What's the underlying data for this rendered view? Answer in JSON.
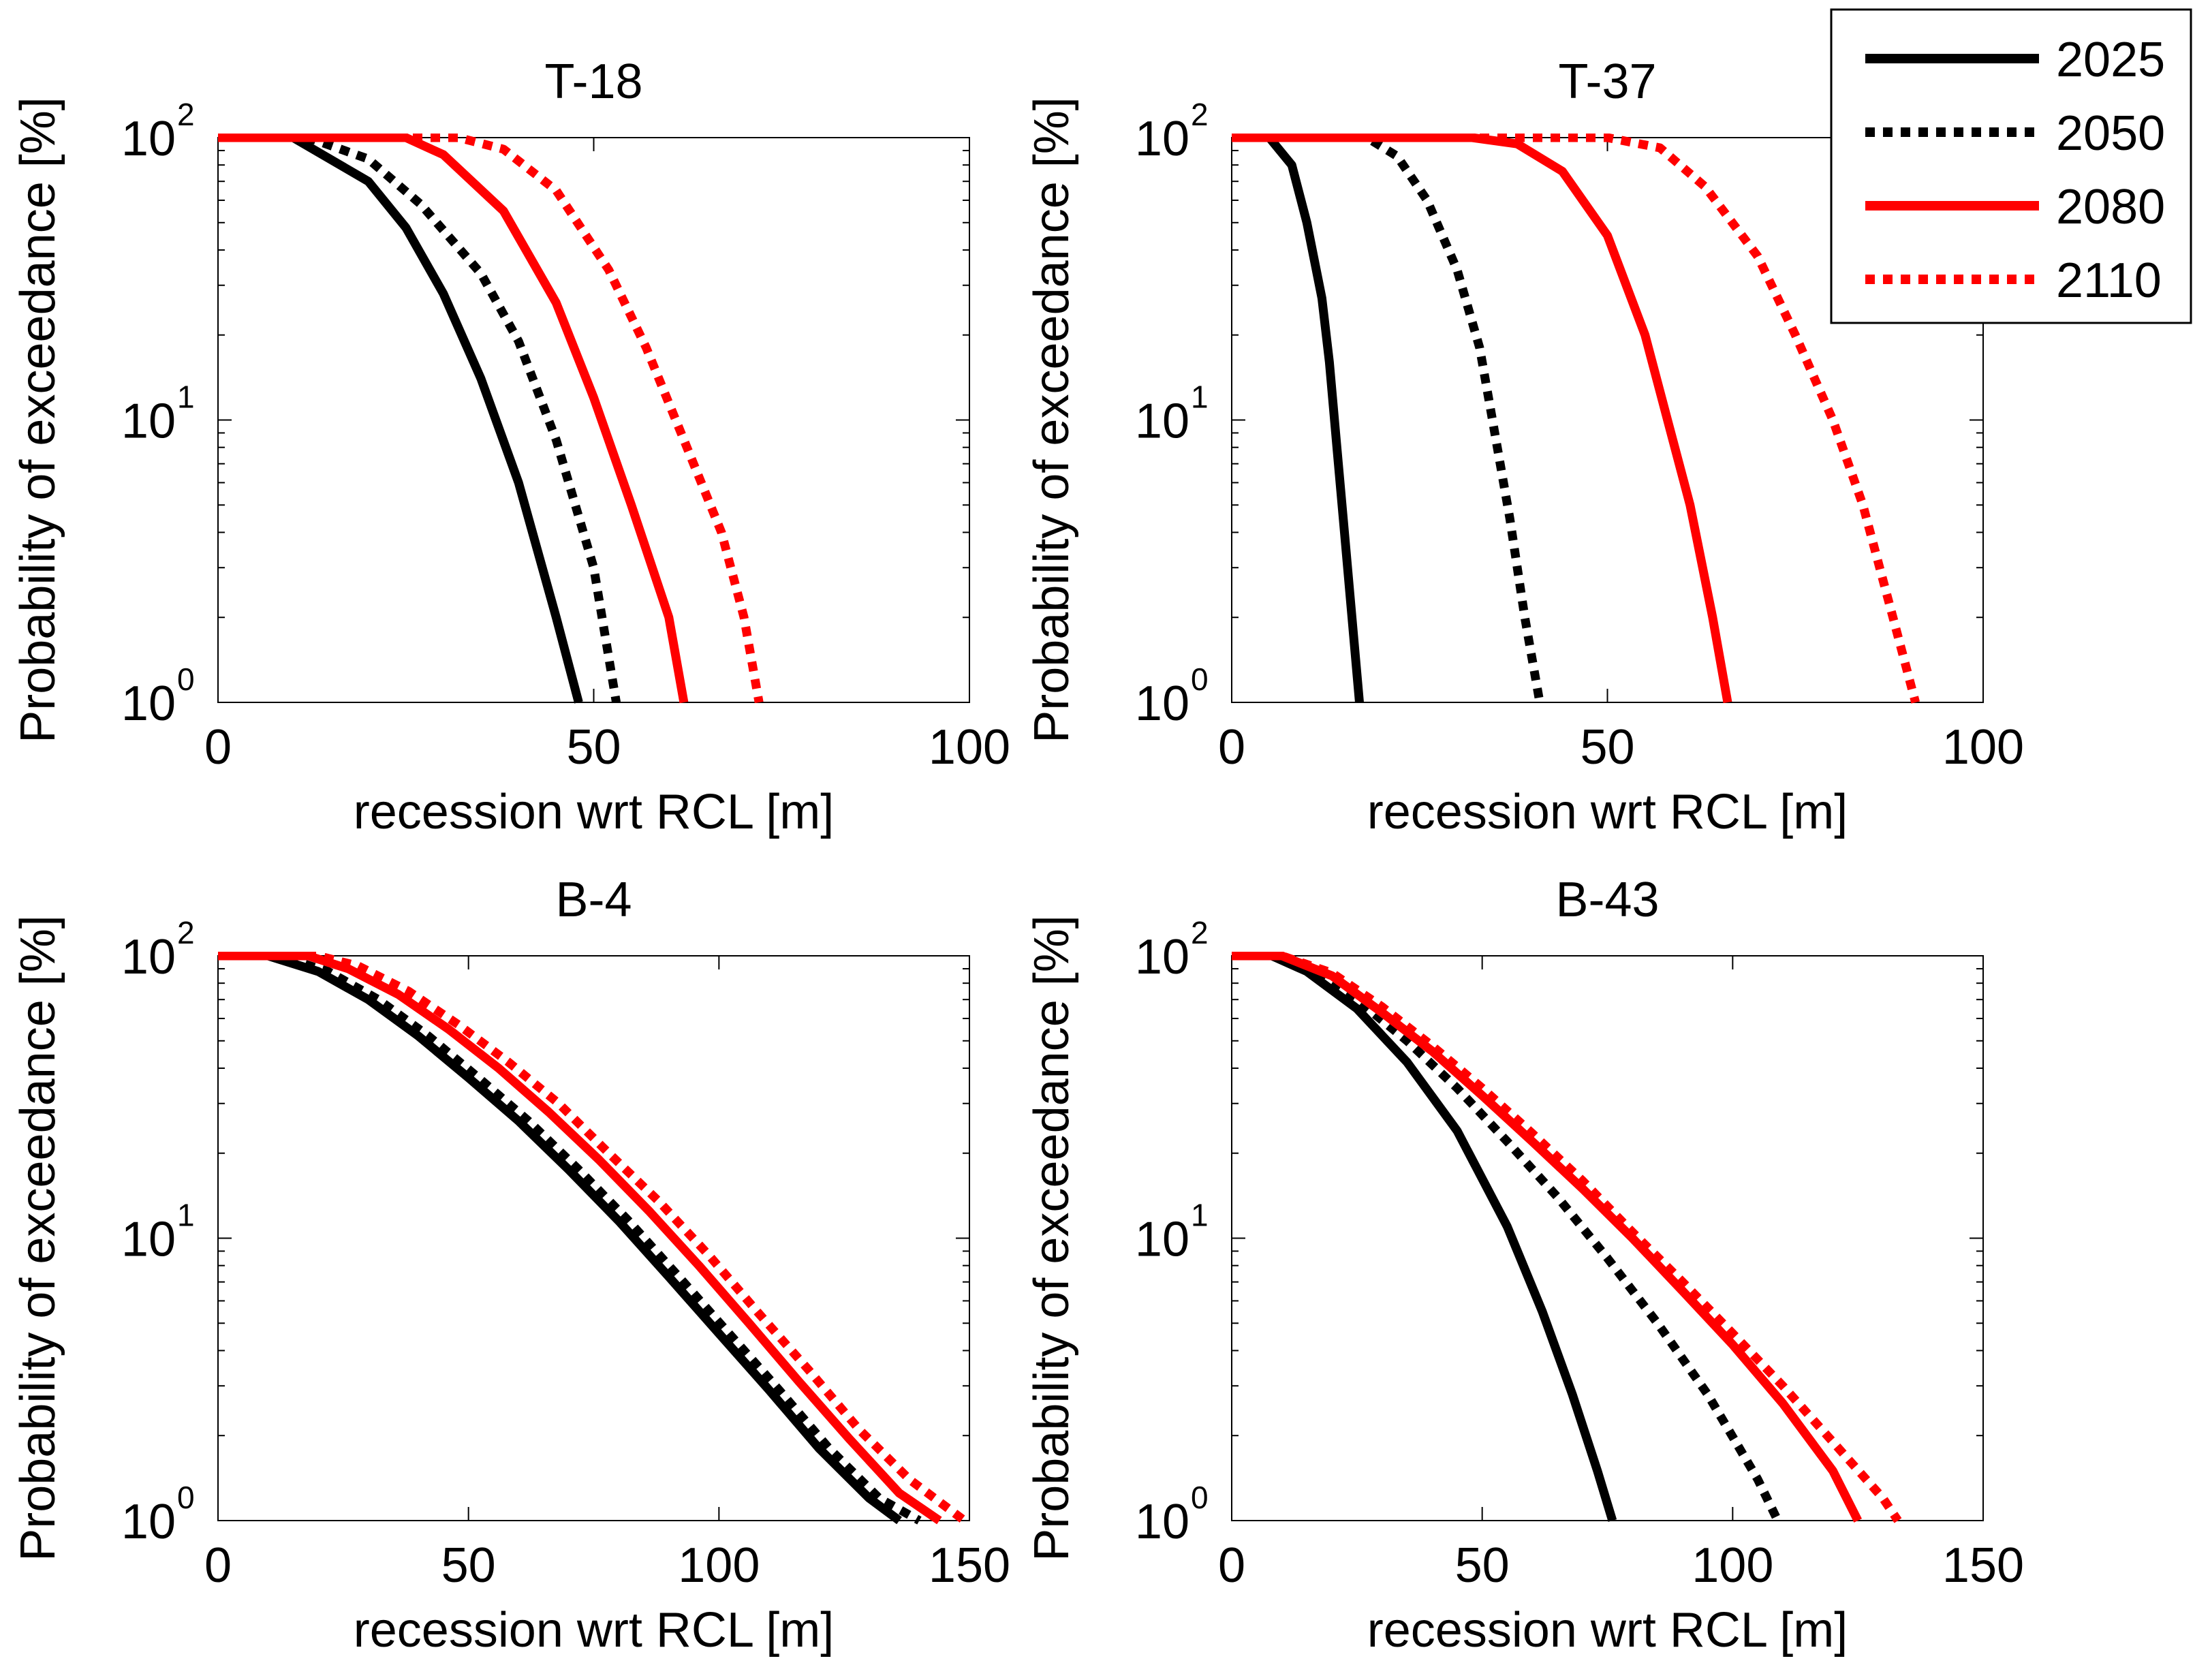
{
  "chart_data": [
    {
      "type": "line",
      "title": "T-18",
      "xlabel": "recession wrt RCL [m]",
      "ylabel": "Probability of exceedance [%]",
      "xlim": [
        0,
        100
      ],
      "ylim": [
        1,
        100
      ],
      "yscale": "log",
      "xticks": [
        "0",
        "50",
        "100"
      ],
      "yticks": [
        {
          "base": "10",
          "exp": "0"
        },
        {
          "base": "10",
          "exp": "1"
        },
        {
          "base": "10",
          "exp": "2"
        }
      ],
      "series": [
        {
          "name": "2025",
          "x": [
            0,
            10,
            20,
            25,
            30,
            35,
            40,
            45,
            48
          ],
          "y": [
            100,
            100,
            70,
            48,
            28,
            14,
            6,
            2,
            1
          ]
        },
        {
          "name": "2050",
          "x": [
            0,
            12,
            20,
            27,
            35,
            40,
            45,
            50,
            53
          ],
          "y": [
            100,
            100,
            84,
            58,
            33,
            19,
            8.5,
            3,
            1
          ]
        },
        {
          "name": "2080",
          "x": [
            0,
            25,
            30,
            38,
            45,
            50,
            55,
            60,
            62
          ],
          "y": [
            100,
            100,
            87,
            55,
            26,
            12,
            5,
            2,
            1
          ]
        },
        {
          "name": "2110",
          "x": [
            0,
            32,
            38,
            45,
            52,
            57,
            62,
            67,
            70,
            72
          ],
          "y": [
            100,
            100,
            91,
            65,
            34,
            18,
            8.5,
            4,
            2,
            1
          ]
        }
      ]
    },
    {
      "type": "line",
      "title": "T-37",
      "xlabel": "recession wrt RCL [m]",
      "ylabel": "Probability of exceedance [%]",
      "xlim": [
        0,
        100
      ],
      "ylim": [
        1,
        100
      ],
      "yscale": "log",
      "xticks": [
        "0",
        "50",
        "100"
      ],
      "yticks": [
        {
          "base": "10",
          "exp": "0"
        },
        {
          "base": "10",
          "exp": "1"
        },
        {
          "base": "10",
          "exp": "2"
        }
      ],
      "series": [
        {
          "name": "2025",
          "x": [
            0,
            5,
            8,
            10,
            12,
            13,
            14,
            15,
            16,
            17
          ],
          "y": [
            100,
            100,
            80,
            50,
            27,
            16,
            8,
            4,
            2,
            1
          ]
        },
        {
          "name": "2050",
          "x": [
            0,
            18,
            22,
            26,
            30,
            33,
            35,
            37,
            39,
            41
          ],
          "y": [
            100,
            100,
            86,
            60,
            34,
            18,
            9,
            4.5,
            2,
            1
          ]
        },
        {
          "name": "2080",
          "x": [
            0,
            32,
            38,
            44,
            50,
            55,
            58,
            61,
            64,
            66
          ],
          "y": [
            100,
            100,
            95,
            76,
            45,
            20,
            10,
            5,
            2,
            1
          ]
        },
        {
          "name": "2110",
          "x": [
            0,
            50,
            57,
            63,
            70,
            75,
            80,
            84,
            88,
            91
          ],
          "y": [
            100,
            100,
            92,
            67,
            38,
            20,
            10,
            5,
            2,
            1
          ]
        }
      ]
    },
    {
      "type": "line",
      "title": "B-4",
      "xlabel": "recession wrt RCL [m]",
      "ylabel": "Probability of exceedance [%]",
      "xlim": [
        0,
        150
      ],
      "ylim": [
        1,
        100
      ],
      "yscale": "log",
      "xticks": [
        "0",
        "50",
        "100",
        "150"
      ],
      "yticks": [
        {
          "base": "10",
          "exp": "0"
        },
        {
          "base": "10",
          "exp": "1"
        },
        {
          "base": "10",
          "exp": "2"
        }
      ],
      "series": [
        {
          "name": "2025",
          "x": [
            0,
            10,
            20,
            30,
            40,
            50,
            60,
            70,
            80,
            90,
            100,
            110,
            120,
            130,
            136
          ],
          "y": [
            100,
            100,
            88,
            70,
            52,
            37,
            26,
            17.5,
            11.5,
            7.3,
            4.6,
            2.9,
            1.8,
            1.2,
            1
          ]
        },
        {
          "name": "2050",
          "x": [
            0,
            12,
            22,
            32,
            42,
            52,
            62,
            72,
            82,
            92,
            102,
            112,
            122,
            132,
            140
          ],
          "y": [
            100,
            100,
            88,
            70,
            52,
            37,
            26,
            17.5,
            11.5,
            7.3,
            4.6,
            2.9,
            1.8,
            1.2,
            1
          ]
        },
        {
          "name": "2080",
          "x": [
            0,
            18,
            26,
            36,
            46,
            56,
            66,
            76,
            86,
            96,
            106,
            116,
            126,
            136,
            144
          ],
          "y": [
            100,
            100,
            90,
            73,
            55,
            40,
            28,
            19,
            12.5,
            8,
            5,
            3.1,
            1.95,
            1.25,
            1
          ]
        },
        {
          "name": "2110",
          "x": [
            0,
            20,
            28,
            38,
            48,
            58,
            68,
            78,
            88,
            98,
            108,
            118,
            128,
            138,
            149
          ],
          "y": [
            100,
            100,
            92,
            75,
            57,
            42,
            30,
            20,
            13.5,
            8.7,
            5.4,
            3.4,
            2.1,
            1.4,
            1
          ]
        }
      ]
    },
    {
      "type": "line",
      "title": "B-43",
      "xlabel": "recession wrt RCL [m]",
      "ylabel": "Probability of exceedance [%]",
      "xlim": [
        0,
        150
      ],
      "ylim": [
        1,
        100
      ],
      "yscale": "log",
      "xticks": [
        "0",
        "50",
        "100",
        "150"
      ],
      "yticks": [
        {
          "base": "10",
          "exp": "0"
        },
        {
          "base": "10",
          "exp": "1"
        },
        {
          "base": "10",
          "exp": "2"
        }
      ],
      "series": [
        {
          "name": "2025",
          "x": [
            0,
            8,
            15,
            25,
            35,
            45,
            55,
            62,
            68,
            73,
            76
          ],
          "y": [
            100,
            100,
            88,
            65,
            42,
            24,
            11,
            5.5,
            2.8,
            1.5,
            1
          ]
        },
        {
          "name": "2050",
          "x": [
            0,
            8,
            15,
            25,
            35,
            45,
            55,
            65,
            75,
            85,
            95,
            105,
            109
          ],
          "y": [
            100,
            100,
            90,
            70,
            50,
            34,
            22,
            14,
            8.5,
            5,
            2.8,
            1.4,
            1
          ]
        },
        {
          "name": "2080",
          "x": [
            0,
            10,
            20,
            30,
            40,
            50,
            60,
            70,
            80,
            90,
            100,
            110,
            120,
            125
          ],
          "y": [
            100,
            100,
            85,
            63,
            46,
            32,
            22,
            15,
            10,
            6.5,
            4.2,
            2.6,
            1.5,
            1
          ]
        },
        {
          "name": "2110",
          "x": [
            0,
            10,
            20,
            30,
            40,
            50,
            60,
            70,
            80,
            90,
            100,
            110,
            120,
            130,
            133
          ],
          "y": [
            100,
            100,
            87,
            66,
            48,
            34,
            23.5,
            16,
            10.5,
            7,
            4.6,
            3,
            1.9,
            1.2,
            1
          ]
        }
      ]
    }
  ],
  "legend": {
    "position": "top-right",
    "entries": [
      {
        "label": "2025",
        "color": "#000000",
        "style": "solid"
      },
      {
        "label": "2050",
        "color": "#000000",
        "style": "dotted"
      },
      {
        "label": "2080",
        "color": "#ff0000",
        "style": "solid"
      },
      {
        "label": "2110",
        "color": "#ff0000",
        "style": "dotted"
      }
    ]
  }
}
